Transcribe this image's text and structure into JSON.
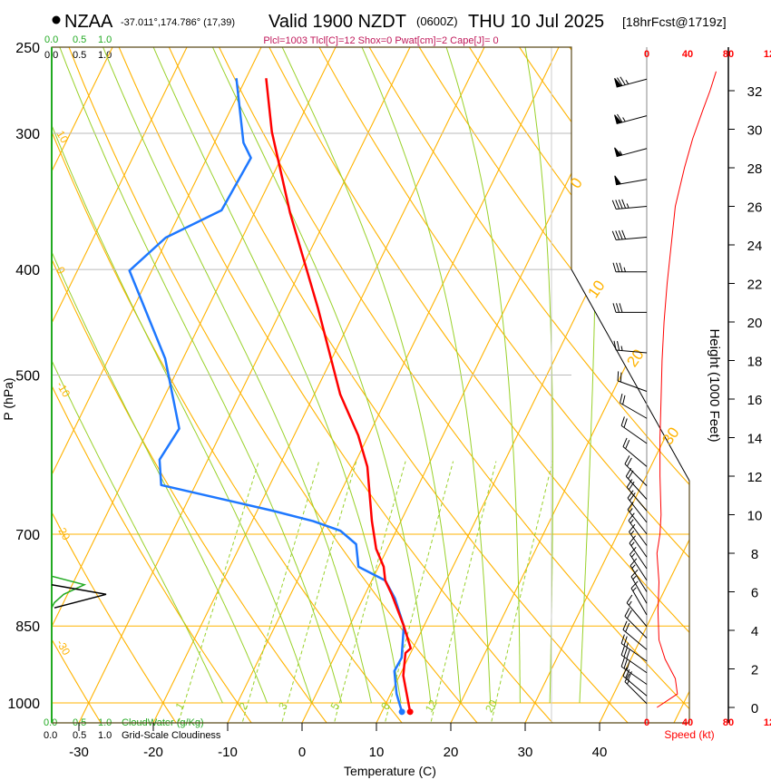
{
  "header": {
    "station": "NZAA",
    "coords": "-37.011°,174.786° (17,39)",
    "valid": "Valid 1900 NZDT",
    "utc": "(0600Z)",
    "date": "THU 10 Jul 2025",
    "forecast": "[18hrFcst@1719z]",
    "indices": "Plcl=1003 Tlcl[C]=12 Shox=0 Pwat[cm]=2 Cape[J]= 0"
  },
  "colors": {
    "temperature": "#ff0000",
    "dewpoint": "#1e78ff",
    "isotherm": "#ffb300",
    "moist_adiabat": "#99d12a",
    "cloudwater": "#22aa22",
    "speed": "#ff0000",
    "indices": "#c0185a"
  },
  "chart_data": {
    "type": "skew-t",
    "xlabel": "Temperature (C)",
    "ylabel": "P (hPa)",
    "y2label": "Height (1000 Feet)",
    "speed_label": "Speed (kt)",
    "temp_ticks": [
      "-30",
      "-20",
      "-10",
      "0",
      "10",
      "20",
      "30",
      "40"
    ],
    "temp_tick_values": [
      -30,
      -20,
      -10,
      0,
      10,
      20,
      30,
      40
    ],
    "pressure_ticks": [
      "250",
      "300",
      "400",
      "500",
      "700",
      "850",
      "1000"
    ],
    "pressure_tick_values": [
      250,
      300,
      400,
      500,
      700,
      850,
      1000
    ],
    "height_ticks": [
      "0",
      "2",
      "4",
      "6",
      "8",
      "10",
      "12",
      "14",
      "16",
      "18",
      "20",
      "22",
      "24",
      "26",
      "28",
      "30",
      "32"
    ],
    "speed_ticks": [
      "0",
      "40",
      "80",
      "12"
    ],
    "cloud_scale_ticks": [
      "0.0",
      "0.5",
      "1.0"
    ],
    "cloudwater_label": "CloudWater (g/Kg)",
    "cloudiness_label": "Grid-Scale Cloudiness",
    "isotherm_labels": [
      "0",
      "10",
      "20",
      "30"
    ],
    "isotherm_label_values": [
      0,
      10,
      20,
      30
    ],
    "theta_labels": [
      "10",
      "0",
      "-10",
      "-20",
      "-30"
    ],
    "theta_label_values": [
      10,
      0,
      -10,
      -20,
      -30
    ],
    "theta_label_pressures": [
      300,
      400,
      510,
      690,
      880
    ],
    "mixing_ratio_labels": [
      "1",
      "2",
      "3",
      "5",
      "8",
      "12",
      "20"
    ],
    "mixing_ratio_values": [
      1,
      2,
      3,
      5,
      8,
      12,
      20
    ],
    "temperature_profile": [
      [
        1019,
        13.8
      ],
      [
        944,
        10.5
      ],
      [
        900,
        9.3
      ],
      [
        891,
        9.7
      ],
      [
        850,
        7.3
      ],
      [
        795,
        3.6
      ],
      [
        772,
        1.8
      ],
      [
        750,
        0.7
      ],
      [
        722,
        -1.5
      ],
      [
        681,
        -3.9
      ],
      [
        607,
        -8.1
      ],
      [
        568,
        -11.4
      ],
      [
        521,
        -16.5
      ],
      [
        434,
        -25.2
      ],
      [
        355,
        -35.2
      ],
      [
        299,
        -43.0
      ],
      [
        267,
        -47.3
      ]
    ],
    "dewpoint_profile": [
      [
        1019,
        12.7
      ],
      [
        981,
        10.8
      ],
      [
        935,
        9.0
      ],
      [
        909,
        9.1
      ],
      [
        850,
        7.3
      ],
      [
        802,
        4.3
      ],
      [
        772,
        1.8
      ],
      [
        750,
        -2.7
      ],
      [
        715,
        -4.5
      ],
      [
        695,
        -7.5
      ],
      [
        681,
        -11.8
      ],
      [
        666,
        -18.0
      ],
      [
        631,
        -34.6
      ],
      [
        598,
        -36.5
      ],
      [
        560,
        -35.9
      ],
      [
        483,
        -42.4
      ],
      [
        401,
        -53.0
      ],
      [
        374,
        -50.3
      ],
      [
        353,
        -44.6
      ],
      [
        316,
        -44.1
      ],
      [
        306,
        -46.1
      ],
      [
        267,
        -51.3
      ]
    ],
    "cloudwater_profile": [
      [
        765,
        0
      ],
      [
        779,
        0.6
      ],
      [
        795,
        0.22
      ],
      [
        809,
        0.05
      ],
      [
        818,
        0
      ]
    ],
    "cloudiness_profile": [
      [
        779,
        0
      ],
      [
        795,
        1.0
      ],
      [
        818,
        0.05
      ]
    ],
    "wind_speed_profile": [
      [
        0,
        10
      ],
      [
        0.7,
        30
      ],
      [
        1.5,
        28
      ],
      [
        2.5,
        18
      ],
      [
        3.5,
        12
      ],
      [
        5,
        11
      ],
      [
        6.5,
        12
      ],
      [
        8,
        10
      ],
      [
        9,
        13
      ],
      [
        10,
        14
      ],
      [
        12,
        13
      ],
      [
        14,
        13
      ],
      [
        16,
        14
      ],
      [
        18,
        15
      ],
      [
        20,
        17
      ],
      [
        22,
        20
      ],
      [
        24,
        24
      ],
      [
        26,
        28
      ],
      [
        28,
        37
      ],
      [
        29.5,
        45
      ],
      [
        31,
        55
      ],
      [
        32,
        62
      ],
      [
        33,
        68
      ]
    ],
    "wind_barbs": [
      [
        32.6,
        255,
        75
      ],
      [
        30.7,
        255,
        65
      ],
      [
        29.0,
        255,
        55
      ],
      [
        27.4,
        260,
        50
      ],
      [
        26.0,
        265,
        45
      ],
      [
        24.4,
        265,
        40
      ],
      [
        22.6,
        270,
        35
      ],
      [
        20.5,
        270,
        30
      ],
      [
        18.4,
        275,
        25
      ],
      [
        16.4,
        290,
        22
      ],
      [
        15.0,
        300,
        20
      ],
      [
        13.7,
        305,
        20
      ],
      [
        12.5,
        310,
        20
      ],
      [
        11.5,
        315,
        20
      ],
      [
        10.8,
        318,
        18
      ],
      [
        10.2,
        320,
        18
      ],
      [
        9.6,
        322,
        18
      ],
      [
        9.0,
        322,
        16
      ],
      [
        8.4,
        324,
        16
      ],
      [
        7.8,
        325,
        16
      ],
      [
        7.2,
        326,
        15
      ],
      [
        6.6,
        327,
        15
      ],
      [
        6.0,
        328,
        15
      ],
      [
        5.4,
        330,
        14
      ],
      [
        4.8,
        330,
        14
      ],
      [
        4.2,
        320,
        16
      ],
      [
        3.6,
        315,
        18
      ],
      [
        3.0,
        310,
        20
      ],
      [
        2.4,
        305,
        24
      ],
      [
        1.8,
        305,
        28
      ],
      [
        1.2,
        305,
        30
      ],
      [
        0.6,
        310,
        28
      ],
      [
        0.2,
        315,
        15
      ]
    ]
  }
}
